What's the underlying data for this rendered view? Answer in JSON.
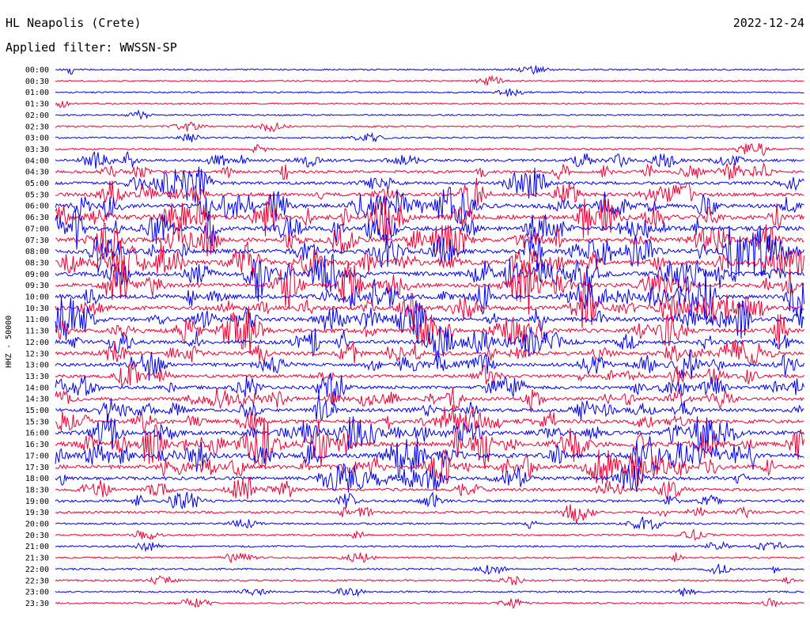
{
  "header": {
    "station": "HL Neapolis (Crete)",
    "date": "2022-12-24",
    "filter": "Applied filter: WWSSN-SP"
  },
  "axis": {
    "ylabel": "HHZ - 50000"
  },
  "chart_data": {
    "type": "line",
    "title": "HL Neapolis (Crete)",
    "ylabel": "HHZ - 50000",
    "colors": {
      "odd": "#0000ee",
      "even": "#ee0033"
    },
    "rows": [
      "00:00",
      "00:30",
      "01:00",
      "01:30",
      "02:00",
      "02:30",
      "03:00",
      "03:30",
      "04:00",
      "04:30",
      "05:00",
      "05:30",
      "06:00",
      "06:30",
      "07:00",
      "07:30",
      "08:00",
      "08:30",
      "09:00",
      "09:30",
      "10:00",
      "10:30",
      "11:00",
      "11:30",
      "12:00",
      "12:30",
      "13:00",
      "13:30",
      "14:00",
      "14:30",
      "15:00",
      "15:30",
      "16:00",
      "16:30",
      "17:00",
      "17:30",
      "18:00",
      "18:30",
      "19:00",
      "19:30",
      "20:00",
      "20:30",
      "21:00",
      "21:30",
      "22:00",
      "22:30",
      "23:00",
      "23:30"
    ],
    "activity": [
      0.06,
      0.05,
      0.05,
      0.05,
      0.05,
      0.06,
      0.08,
      0.12,
      0.35,
      0.4,
      0.45,
      0.6,
      0.75,
      0.85,
      0.8,
      0.75,
      0.8,
      0.85,
      0.85,
      0.7,
      0.8,
      0.75,
      0.75,
      0.7,
      0.65,
      0.6,
      0.55,
      0.5,
      0.55,
      0.55,
      0.55,
      0.6,
      0.7,
      0.85,
      0.85,
      0.75,
      0.55,
      0.4,
      0.3,
      0.25,
      0.15,
      0.12,
      0.12,
      0.12,
      0.12,
      0.1,
      0.1,
      0.1
    ]
  }
}
